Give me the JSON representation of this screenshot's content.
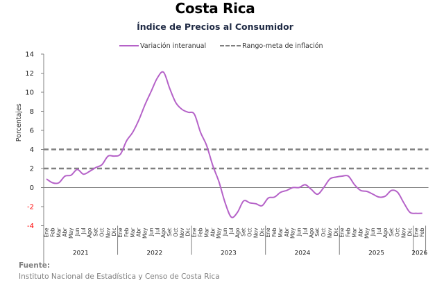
{
  "header": {
    "title": "Costa Rica",
    "subtitle": "Índice de Precios al Consumidor"
  },
  "legend": {
    "series_label": "Variación interanual",
    "band_label": "Rango-meta de inflación"
  },
  "colors": {
    "series": "#b562c8",
    "band": "#7f7f7f",
    "negative_tick": "#ff0000",
    "axis": "#808080"
  },
  "footer": {
    "source_label": "Fuente:",
    "source_text": "Instituto Nacional de Estadística y Censo de Costa Rica"
  },
  "chart_data": {
    "type": "line",
    "title": "Índice de Precios al Consumidor",
    "xlabel": "",
    "ylabel": "Porcentajes",
    "ylim": [
      -4,
      14
    ],
    "yticks": [
      -4,
      -2,
      0,
      2,
      4,
      6,
      8,
      10,
      12,
      14
    ],
    "grid": false,
    "legend_position": "top",
    "month_labels": [
      "Ene",
      "Feb",
      "Mar",
      "Abr",
      "May",
      "Jun",
      "Jul",
      "Ago",
      "Set",
      "Oct",
      "Nov",
      "Dic"
    ],
    "years": [
      "2021",
      "2022",
      "2023",
      "2024",
      "2025",
      "2026"
    ],
    "months_in_last_year": 2,
    "reference_lines": [
      {
        "name": "Rango-meta de inflación (límite superior)",
        "value": 4
      },
      {
        "name": "Rango-meta de inflación (límite inferior)",
        "value": 2
      }
    ],
    "series": [
      {
        "name": "Variación interanual",
        "values": [
          0.9,
          0.5,
          0.5,
          1.2,
          1.3,
          1.9,
          1.4,
          1.7,
          2.1,
          2.4,
          3.3,
          3.3,
          3.5,
          4.9,
          5.8,
          7.1,
          8.7,
          10.1,
          11.5,
          12.1,
          10.4,
          8.9,
          8.2,
          7.9,
          7.7,
          5.8,
          4.4,
          2.3,
          0.6,
          -1.6,
          -3.1,
          -2.6,
          -1.4,
          -1.6,
          -1.7,
          -1.9,
          -1.1,
          -1.0,
          -0.5,
          -0.3,
          0.0,
          0.0,
          0.3,
          -0.2,
          -0.7,
          0.0,
          0.9,
          1.1,
          1.2,
          1.2,
          0.3,
          -0.3,
          -0.4,
          -0.7,
          -1.0,
          -0.9,
          -0.3,
          -0.5,
          -1.6,
          -2.6,
          -2.7,
          -2.7
        ]
      }
    ]
  }
}
